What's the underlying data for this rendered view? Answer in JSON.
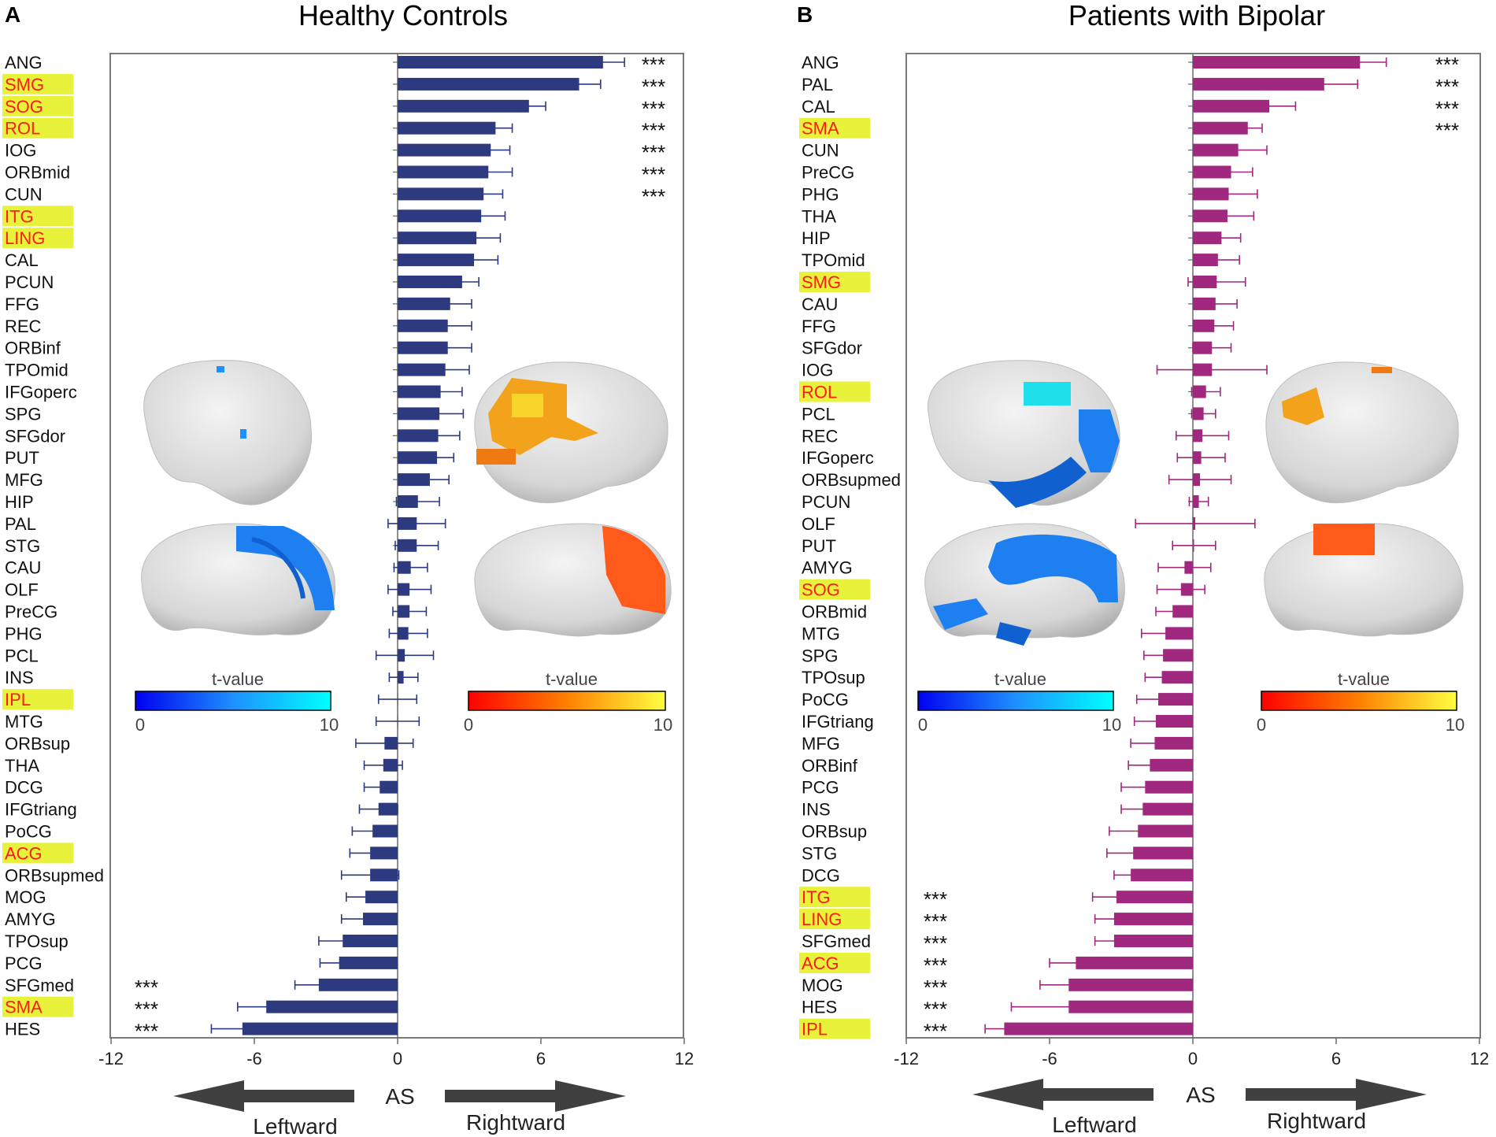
{
  "chart_data": [
    {
      "type": "bar",
      "orientation": "horizontal",
      "panel_letter": "A",
      "title": "Healthy Controls",
      "xlabel": "AS",
      "left_label": "Leftward",
      "right_label": "Rightward",
      "xlim": [
        -12,
        12
      ],
      "xticks": [
        -12,
        -6,
        0,
        6,
        12
      ],
      "xtick_labels": [
        "-12",
        "-6",
        "0",
        "6",
        "12"
      ],
      "bar_color": "#2e3a80",
      "highlight_color": "#e8f23a",
      "highlight_text_color": "#ff1a1a",
      "significance_marker": "***",
      "categories": [
        "ANG",
        "SMG",
        "SOG",
        "ROL",
        "IOG",
        "ORBmid",
        "CUN",
        "ITG",
        "LING",
        "CAL",
        "PCUN",
        "FFG",
        "REC",
        "ORBinf",
        "TPOmid",
        "IFGoperc",
        "SPG",
        "SFGdor",
        "PUT",
        "MFG",
        "HIP",
        "PAL",
        "STG",
        "CAU",
        "OLF",
        "PreCG",
        "PHG",
        "PCL",
        "INS",
        "IPL",
        "MTG",
        "ORBsup",
        "THA",
        "DCG",
        "IFGtriang",
        "PoCG",
        "ACG",
        "ORBsupmed",
        "MOG",
        "AMYG",
        "TPOsup",
        "PCG",
        "SFGmed",
        "SMA",
        "HES"
      ],
      "values": [
        8.6,
        7.6,
        5.5,
        4.1,
        3.9,
        3.8,
        3.6,
        3.5,
        3.3,
        3.2,
        2.7,
        2.2,
        2.1,
        2.1,
        2.0,
        1.8,
        1.75,
        1.7,
        1.65,
        1.35,
        0.85,
        0.8,
        0.8,
        0.55,
        0.5,
        0.5,
        0.45,
        0.3,
        0.25,
        0.0,
        0.0,
        -0.55,
        -0.6,
        -0.75,
        -0.8,
        -1.05,
        -1.15,
        -1.15,
        -1.35,
        -1.45,
        -2.3,
        -2.45,
        -3.3,
        -5.5,
        -6.5
      ],
      "errors": [
        0.9,
        0.9,
        0.7,
        0.7,
        0.8,
        1.0,
        0.8,
        1.0,
        1.0,
        1.0,
        0.7,
        0.9,
        1.0,
        1.0,
        1.0,
        0.9,
        1.0,
        0.9,
        0.7,
        0.8,
        0.9,
        1.2,
        0.9,
        0.7,
        0.9,
        0.7,
        0.8,
        1.2,
        0.6,
        0.8,
        0.9,
        1.2,
        0.8,
        0.65,
        0.8,
        0.85,
        0.85,
        1.2,
        0.8,
        0.9,
        1.0,
        0.8,
        1.0,
        1.2,
        1.3
      ],
      "highlighted": [
        "SMG",
        "SOG",
        "ROL",
        "ITG",
        "LING",
        "IPL",
        "ACG",
        "SMA"
      ],
      "significant_positive": [
        "ANG",
        "SMG",
        "SOG",
        "ROL",
        "IOG",
        "ORBmid",
        "CUN"
      ],
      "significant_negative": [
        "SFGmed",
        "SMA",
        "HES"
      ],
      "colorbars": [
        {
          "label": "t-value",
          "min": "0",
          "max": "10",
          "colors": [
            "#0000f0",
            "#1e90ff",
            "#00ffff"
          ]
        },
        {
          "label": "t-value",
          "min": "0",
          "max": "10",
          "colors": [
            "#ff0000",
            "#ff8000",
            "#ffff40"
          ]
        }
      ]
    },
    {
      "type": "bar",
      "orientation": "horizontal",
      "panel_letter": "B",
      "title": "Patients with Bipolar",
      "xlabel": "AS",
      "left_label": "Leftward",
      "right_label": "Rightward",
      "xlim": [
        -12,
        12
      ],
      "xticks": [
        -12,
        -6,
        0,
        6,
        12
      ],
      "xtick_labels": [
        "-12",
        "-6",
        "0",
        "6",
        "12"
      ],
      "bar_color": "#a0287e",
      "highlight_color": "#e8f23a",
      "highlight_text_color": "#ff1a1a",
      "significance_marker": "***",
      "categories": [
        "ANG",
        "PAL",
        "CAL",
        "SMA",
        "CUN",
        "PreCG",
        "PHG",
        "THA",
        "HIP",
        "TPOmid",
        "SMG",
        "CAU",
        "FFG",
        "SFGdor",
        "IOG",
        "ROL",
        "PCL",
        "REC",
        "IFGoperc",
        "ORBsupmed",
        "PCUN",
        "OLF",
        "PUT",
        "AMYG",
        "SOG",
        "ORBmid",
        "MTG",
        "SPG",
        "TPOsup",
        "PoCG",
        "IFGtriang",
        "MFG",
        "ORBinf",
        "PCG",
        "INS",
        "ORBsup",
        "STG",
        "DCG",
        "ITG",
        "LING",
        "SFGmed",
        "ACG",
        "MOG",
        "HES",
        "IPL"
      ],
      "values": [
        7.0,
        5.5,
        3.2,
        2.3,
        1.9,
        1.6,
        1.5,
        1.45,
        1.2,
        1.05,
        1.0,
        0.95,
        0.9,
        0.8,
        0.8,
        0.55,
        0.45,
        0.4,
        0.35,
        0.3,
        0.25,
        0.1,
        0.05,
        -0.35,
        -0.5,
        -0.85,
        -1.15,
        -1.25,
        -1.3,
        -1.45,
        -1.55,
        -1.6,
        -1.8,
        -2.0,
        -2.1,
        -2.3,
        -2.5,
        -2.6,
        -3.2,
        -3.3,
        -3.3,
        -4.9,
        -5.2,
        -5.2,
        -7.9
      ],
      "errors": [
        1.1,
        1.4,
        1.1,
        0.6,
        1.2,
        0.9,
        1.2,
        1.1,
        0.8,
        0.9,
        1.2,
        0.9,
        0.8,
        0.8,
        2.3,
        0.6,
        0.5,
        1.1,
        1.0,
        1.3,
        0.4,
        2.5,
        0.9,
        1.1,
        1.0,
        0.7,
        1.0,
        0.8,
        0.7,
        0.9,
        0.9,
        1.0,
        0.9,
        1.0,
        0.9,
        1.2,
        1.1,
        0.7,
        1.0,
        0.8,
        0.8,
        1.1,
        1.2,
        2.4,
        0.8
      ],
      "highlighted": [
        "SMA",
        "SMG",
        "ROL",
        "SOG",
        "ITG",
        "LING",
        "ACG",
        "IPL"
      ],
      "significant_positive": [
        "ANG",
        "PAL",
        "CAL",
        "SMA"
      ],
      "significant_negative": [
        "ITG",
        "LING",
        "SFGmed",
        "ACG",
        "MOG",
        "HES",
        "IPL"
      ],
      "colorbars": [
        {
          "label": "t-value",
          "min": "0",
          "max": "10",
          "colors": [
            "#0000f0",
            "#1e90ff",
            "#00ffff"
          ]
        },
        {
          "label": "t-value",
          "min": "0",
          "max": "10",
          "colors": [
            "#ff0000",
            "#ff8000",
            "#ffff40"
          ]
        }
      ]
    }
  ]
}
